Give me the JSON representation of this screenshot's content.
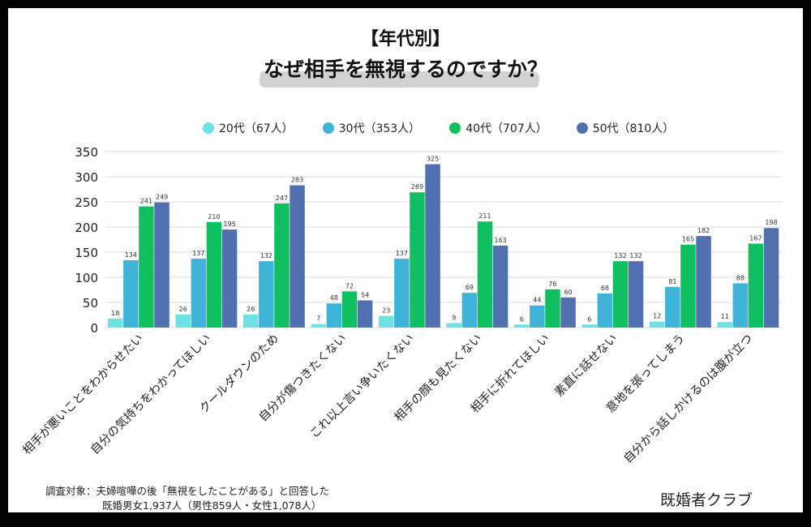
{
  "chart_data": {
    "type": "bar",
    "title": "【年代別】",
    "subtitle": "なぜ相手を無視するのですか？",
    "categories": [
      "相手が悪いことをわからせたい",
      "自分の気持ちをわかってほしい",
      "クールダウンのため",
      "自分が傷つきたくない",
      "これ以上言い争いたくない",
      "相手の顔も見たくない",
      "相手に折れてほしい",
      "素直に話せない",
      "意地を張ってしまう",
      "自分から話しかけるのは腹が立つ"
    ],
    "series": [
      {
        "name": "20代（67人）",
        "color": "#6fe0e4",
        "values": [
          18,
          26,
          26,
          7,
          23,
          9,
          6,
          6,
          12,
          11
        ]
      },
      {
        "name": "30代（353人）",
        "color": "#3fb4d8",
        "values": [
          134,
          137,
          132,
          48,
          137,
          69,
          44,
          68,
          81,
          88
        ]
      },
      {
        "name": "40代（707人）",
        "color": "#10c060",
        "values": [
          241,
          210,
          247,
          72,
          269,
          211,
          76,
          132,
          165,
          167
        ]
      },
      {
        "name": "50代（810人）",
        "color": "#5070b0",
        "values": [
          249,
          195,
          283,
          54,
          325,
          163,
          60,
          132,
          182,
          198
        ]
      }
    ],
    "ylim": [
      0,
      350
    ],
    "yticks": [
      0,
      50,
      100,
      150,
      200,
      250,
      300,
      350
    ],
    "grid": true,
    "legend_position": "top",
    "data_labels": true
  },
  "footnote": {
    "line1": "調査対象：夫婦喧嘩の後「無視をしたことがある」と回答した",
    "line2": "既婚男女1,937人（男性859人・女性1,078人）"
  },
  "brand": "既婚者クラブ"
}
